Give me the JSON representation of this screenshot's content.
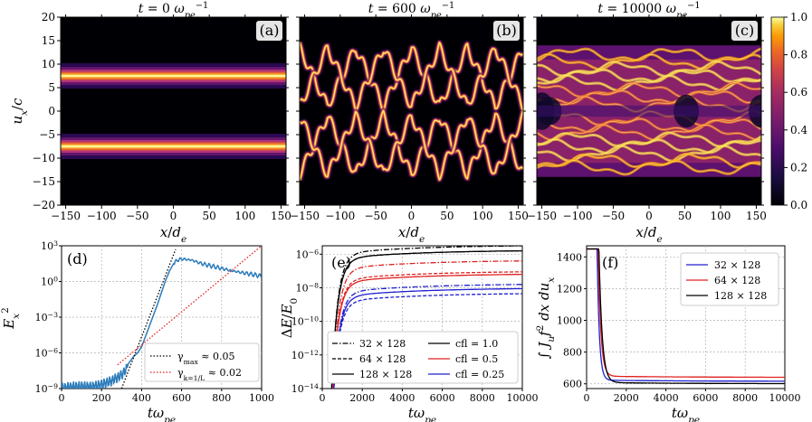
{
  "chart_data": [
    {
      "id": "a",
      "type": "heatmap",
      "panel_label": "(a)",
      "title": "t = 0 ω_pe^-1",
      "xlabel": "x/d_e",
      "ylabel": "u_x/c",
      "xlim": [
        -157,
        157
      ],
      "ylim": [
        -20,
        20
      ],
      "xticks": [
        -150,
        -100,
        -50,
        0,
        50,
        100,
        150
      ],
      "yticks": [
        -20,
        -15,
        -10,
        -5,
        0,
        5,
        10,
        15,
        20
      ],
      "beams": [
        {
          "u": 7.5,
          "width": 1.2
        },
        {
          "u": -7.5,
          "width": 1.2
        }
      ],
      "colormap": "inferno"
    },
    {
      "id": "b",
      "type": "heatmap",
      "panel_label": "(b)",
      "title": "t = 600 ω_pe^-1",
      "xlabel": "x/d_e",
      "xlim": [
        -157,
        157
      ],
      "ylim": [
        -20,
        20
      ],
      "xticks": [
        -150,
        -100,
        -50,
        0,
        50,
        100,
        150
      ],
      "phase_space_holes": 4,
      "amplitude": 13.5,
      "colormap": "inferno"
    },
    {
      "id": "c",
      "type": "heatmap",
      "panel_label": "(c)",
      "title": "t = 10000 ω_pe^-1",
      "xlabel": "x/d_e",
      "xlim": [
        -157,
        157
      ],
      "ylim": [
        -20,
        20
      ],
      "xticks": [
        -150,
        -100,
        -50,
        0,
        50,
        100,
        150
      ],
      "colorbar": {
        "ticks": [
          "0.0",
          "0.2",
          "0.4",
          "0.6",
          "0.8",
          "1.0"
        ],
        "range": [
          0,
          1
        ]
      },
      "colormap": "inferno"
    },
    {
      "id": "d",
      "type": "line",
      "panel_label": "(d)",
      "xlabel": "tω_pe",
      "ylabel": "E_x^2",
      "xlim": [
        0,
        1000
      ],
      "ylim_log10": [
        -9,
        3
      ],
      "xticks": [
        "0",
        "200",
        "400",
        "600",
        "800",
        "1000"
      ],
      "yticks": [
        "10^-9",
        "10^-6",
        "10^-3",
        "10^0",
        "10^3"
      ],
      "series": [
        {
          "kind": "simulation",
          "color": "#2b7bba",
          "x": [
            0,
            50,
            100,
            150,
            200,
            250,
            300,
            330,
            360,
            380,
            400,
            420,
            440,
            460,
            480,
            500,
            520,
            540,
            560,
            580,
            600,
            650,
            700,
            750,
            800,
            850,
            900,
            950,
            1000
          ],
          "log10y": [
            -8.7,
            -8.6,
            -8.55,
            -8.6,
            -8.4,
            -8.1,
            -7.6,
            -7.0,
            -6.3,
            -6.0,
            -5.5,
            -4.6,
            -3.7,
            -2.8,
            -1.9,
            -0.9,
            0.1,
            0.9,
            1.5,
            1.8,
            1.9,
            1.8,
            1.5,
            1.3,
            1.1,
            0.9,
            0.75,
            0.6,
            0.45
          ]
        },
        {
          "name": "γ_max ≈ 0.05",
          "color": "#000000",
          "dash": "dot",
          "x": [
            300,
            570
          ],
          "log10y": [
            -9,
            2.7
          ]
        },
        {
          "name": "γ_k=1/L ≈ 0.02",
          "color": "#e02020",
          "dash": "dot",
          "x": [
            280,
            1000
          ],
          "log10y": [
            -7.0,
            3.0
          ]
        }
      ],
      "legend": [
        "γ_max ≈ 0.05",
        "γ_k=1/L ≈ 0.02"
      ]
    },
    {
      "id": "e",
      "type": "line",
      "panel_label": "(e)",
      "xlabel": "tω_pe",
      "ylabel": "ΔE/E_0",
      "xlim": [
        0,
        10000
      ],
      "ylim_log10": [
        -14,
        -5.5
      ],
      "xticks": [
        "0",
        "2000",
        "4000",
        "6000",
        "8000",
        "10000"
      ],
      "yticks": [
        "10^-14",
        "10^-12",
        "10^-10",
        "10^-8",
        "10^-6"
      ],
      "series": [
        {
          "color": "#000000",
          "dash": "dashdot",
          "final": -5.45,
          "onset": 450
        },
        {
          "color": "#000000",
          "dash": "dash",
          "final": -5.75,
          "onset": 450
        },
        {
          "color": "#000000",
          "dash": "solid",
          "final": -5.75,
          "onset": 450
        },
        {
          "color": "#e02020",
          "dash": "dashdot",
          "final": -6.35,
          "onset": 500
        },
        {
          "color": "#e02020",
          "dash": "dash",
          "final": -7.0,
          "onset": 500
        },
        {
          "color": "#e02020",
          "dash": "solid",
          "final": -7.15,
          "onset": 500
        },
        {
          "color": "#1f1fd0",
          "dash": "dashdot",
          "final": -7.75,
          "onset": 550
        },
        {
          "color": "#1f1fd0",
          "dash": "dash",
          "final": -8.3,
          "onset": 550
        },
        {
          "color": "#1f1fd0",
          "dash": "solid",
          "final": -8.0,
          "onset": 550
        }
      ],
      "legend_left": [
        {
          "label": "32 × 128",
          "dash": "dashdot"
        },
        {
          "label": "64 × 128",
          "dash": "dash"
        },
        {
          "label": "128 × 128",
          "dash": "solid"
        }
      ],
      "legend_right": [
        {
          "label": "cfl = 1.0",
          "color": "#000000"
        },
        {
          "label": "cfl = 0.5",
          "color": "#e02020"
        },
        {
          "label": "cfl = 0.25",
          "color": "#1f1fd0"
        }
      ]
    },
    {
      "id": "f",
      "type": "line",
      "panel_label": "(f)",
      "xlabel": "tω_pe",
      "ylabel": "∫ J_u f^2 dx du_x",
      "xlim": [
        0,
        10000
      ],
      "ylim": [
        570,
        1470
      ],
      "xticks": [
        "0",
        "2000",
        "4000",
        "6000",
        "8000",
        "10000"
      ],
      "yticks": [
        "600",
        "800",
        "1000",
        "1200",
        "1400"
      ],
      "series": [
        {
          "name": "32 × 128",
          "color": "#1f1fd0",
          "start": 1450,
          "final": 615
        },
        {
          "name": "64 × 128",
          "color": "#e02020",
          "start": 1450,
          "final": 640
        },
        {
          "name": "128 × 128",
          "color": "#000000",
          "start": 1450,
          "final": 600
        }
      ]
    }
  ]
}
